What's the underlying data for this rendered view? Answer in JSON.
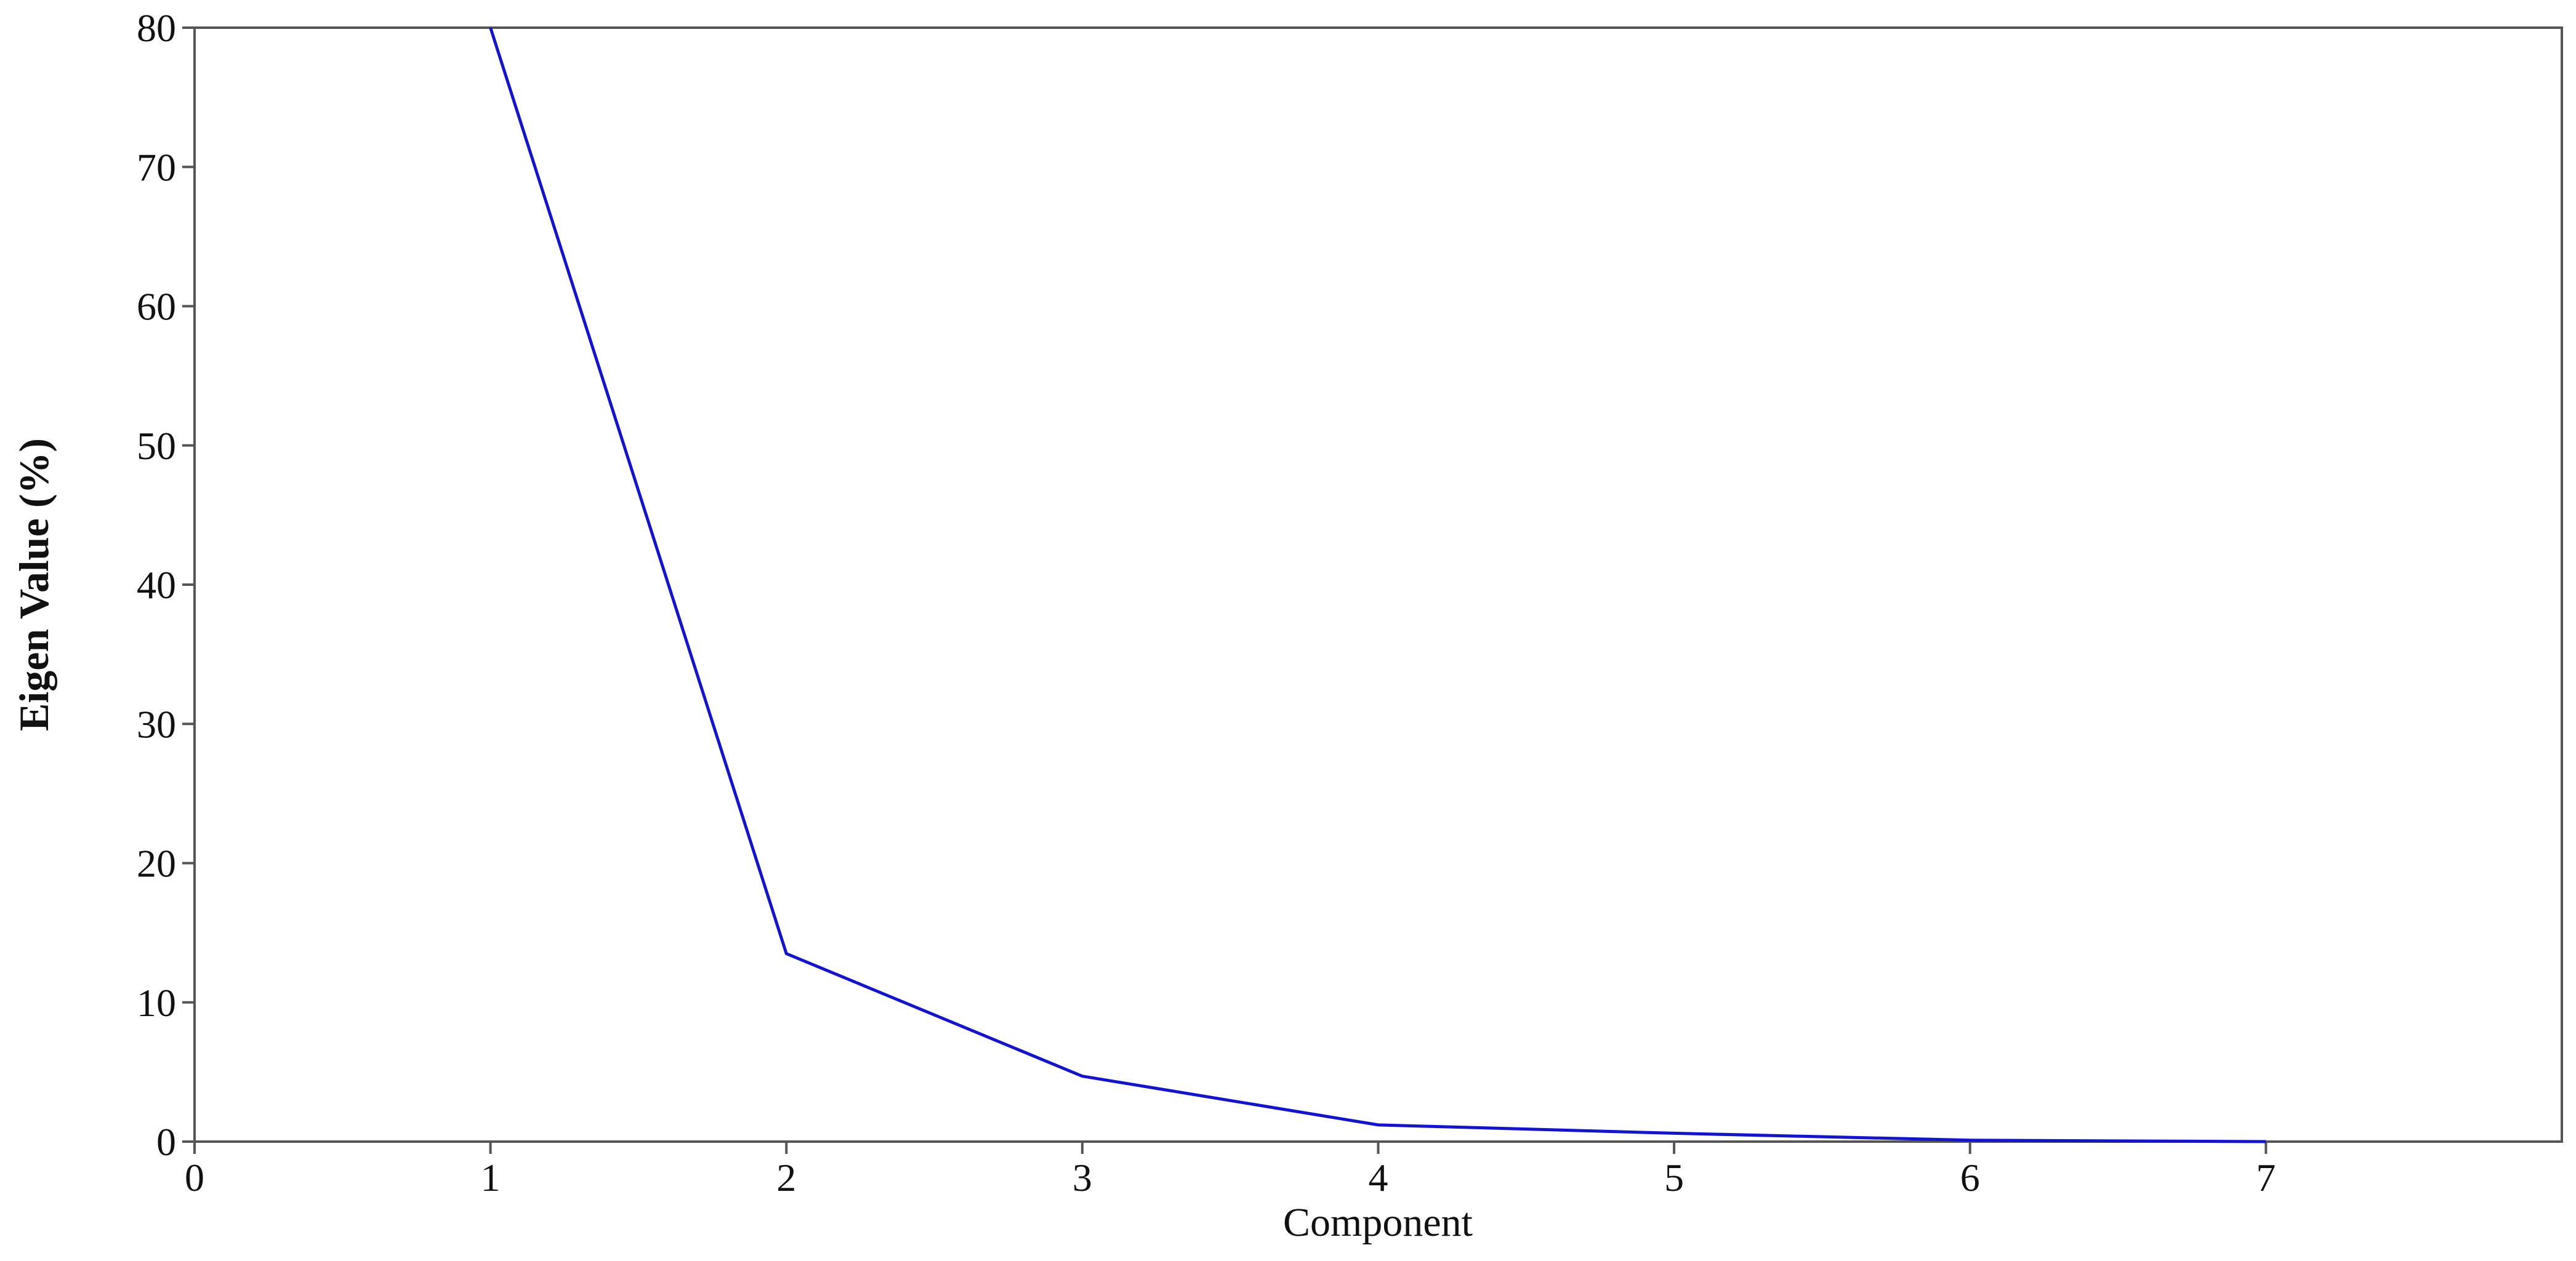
{
  "chart_data": {
    "type": "line",
    "title": "",
    "xlabel": "Component",
    "ylabel": "Eigen Value (%)",
    "xlim": [
      0,
      8
    ],
    "ylim": [
      0,
      80
    ],
    "x_ticks": [
      0,
      1,
      2,
      3,
      4,
      5,
      6,
      7
    ],
    "y_ticks": [
      0,
      10,
      20,
      30,
      40,
      50,
      60,
      70,
      80
    ],
    "grid": false,
    "legend": "none",
    "series": [
      {
        "color": "#1414c8",
        "x": [
          1,
          2,
          3,
          4,
          5,
          6,
          7
        ],
        "y": [
          80.0,
          13.5,
          4.7,
          1.2,
          0.6,
          0.1,
          0.0
        ]
      }
    ]
  }
}
